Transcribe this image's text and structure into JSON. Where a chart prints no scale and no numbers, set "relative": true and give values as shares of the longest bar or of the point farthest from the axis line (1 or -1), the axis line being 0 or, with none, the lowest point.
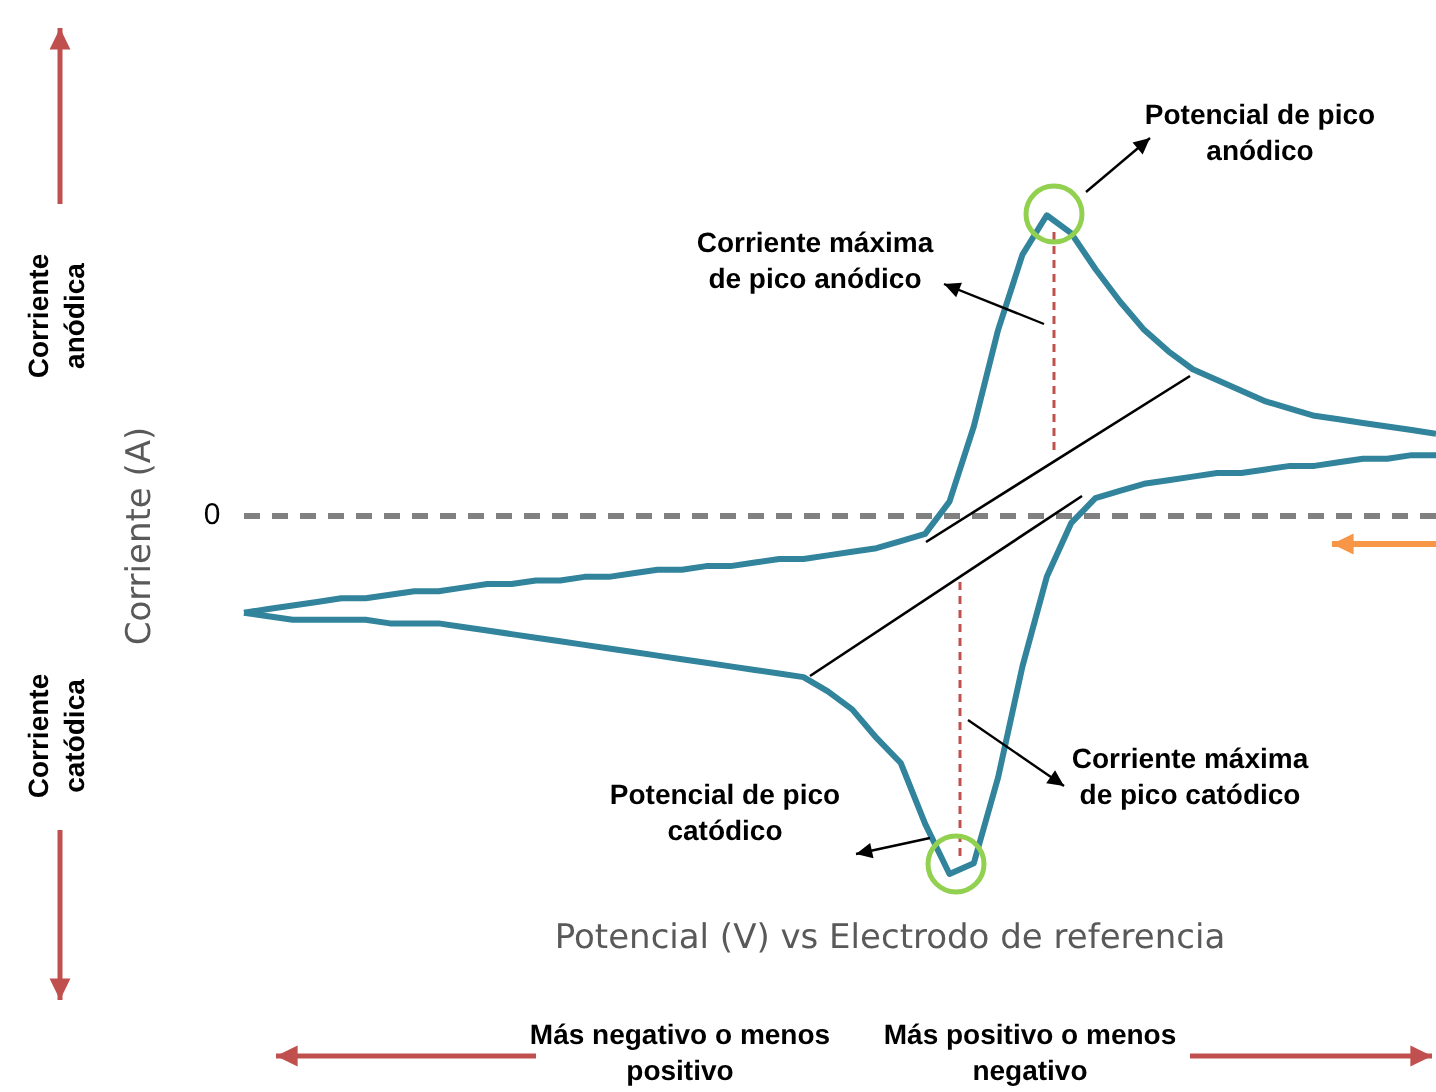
{
  "chart_data": {
    "type": "line",
    "relative": true,
    "xlabel": "Potencial (V) vs Electrodo de referencia",
    "ylabel": "Corriente (A)",
    "tick_labels": false,
    "legend": false,
    "grid": false,
    "marker": "none",
    "line_style": "solid",
    "categories": [
      null,
      null,
      null,
      null,
      null,
      null,
      null,
      null,
      null,
      null,
      null,
      null,
      null,
      null,
      null,
      null,
      null,
      null,
      null,
      null,
      null,
      null,
      null,
      null,
      null,
      null,
      null,
      null,
      null,
      null,
      null,
      null,
      null,
      null,
      null,
      null,
      null,
      null,
      null,
      null,
      null,
      null,
      null,
      null,
      null,
      null,
      null,
      null,
      null,
      null
    ],
    "ref_lines": [
      {
        "axis": "y",
        "value": 0,
        "label": "0",
        "color": "#808080",
        "line_style": "dashed"
      }
    ],
    "series": [
      {
        "color": "#31849b",
        "values": [
          -0.27,
          -0.26,
          -0.25,
          -0.24,
          -0.23,
          -0.23,
          -0.22,
          -0.21,
          -0.21,
          -0.2,
          -0.19,
          -0.19,
          -0.18,
          -0.18,
          -0.17,
          -0.17,
          -0.16,
          -0.15,
          -0.15,
          -0.14,
          -0.14,
          -0.13,
          -0.12,
          -0.12,
          -0.11,
          -0.1,
          -0.09,
          -0.07,
          -0.05,
          0.04,
          0.25,
          0.52,
          0.73,
          0.84,
          0.79,
          0.69,
          0.6,
          0.52,
          0.46,
          0.41,
          0.38,
          0.35,
          0.32,
          0.3,
          0.28,
          0.27,
          0.26,
          0.25,
          0.24,
          0.23
        ]
      },
      {
        "color": "#31849b",
        "values": [
          -0.27,
          -0.28,
          -0.29,
          -0.29,
          -0.29,
          -0.29,
          -0.3,
          -0.3,
          -0.3,
          -0.31,
          -0.32,
          -0.33,
          -0.34,
          -0.35,
          -0.36,
          -0.37,
          -0.38,
          -0.39,
          -0.4,
          -0.41,
          -0.42,
          -0.43,
          -0.44,
          -0.45,
          -0.49,
          -0.54,
          -0.62,
          -0.69,
          -0.86,
          -1.0,
          -0.97,
          -0.73,
          -0.42,
          -0.17,
          -0.02,
          0.05,
          0.07,
          0.09,
          0.1,
          0.11,
          0.12,
          0.12,
          0.13,
          0.14,
          0.14,
          0.15,
          0.16,
          0.16,
          0.17,
          0.17
        ]
      }
    ],
    "annotations": [
      "Potencial de pico anódico",
      "Corriente máxima de pico anódico",
      "Potencial de pico catódico",
      "Corriente máxima de pico catódico",
      "Corriente anódica",
      "Corriente catódica",
      "Más negativo o menos positivo",
      "Más positivo o menos negativo"
    ]
  }
}
